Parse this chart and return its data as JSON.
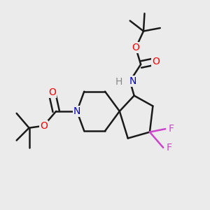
{
  "bg_color": "#ebebeb",
  "atom_colors": {
    "O": "#ff0000",
    "N": "#0000cc",
    "F": "#cc44cc",
    "H": "#888888",
    "C": "#000000"
  },
  "bond_color": "#1a1a1a",
  "bond_width": 1.8
}
